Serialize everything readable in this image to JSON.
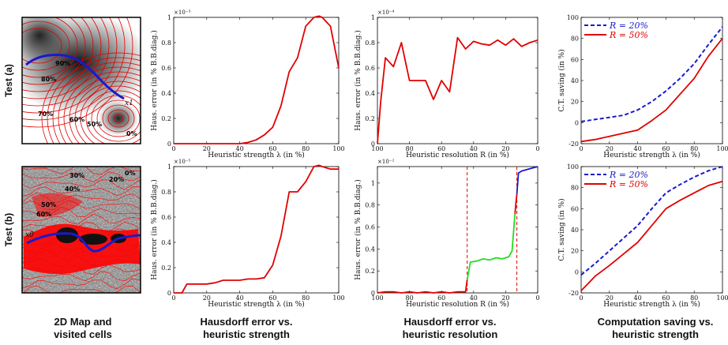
{
  "row_labels": [
    "Test (a)",
    "Test (b)"
  ],
  "captions": [
    [
      "2D Map and",
      "visited cells"
    ],
    [
      "Hausdorff error vs.",
      "heuristic strength"
    ],
    [
      "Hausdorff error vs.",
      "heuristic resolution"
    ],
    [
      "Computation saving vs.",
      "heuristic strength"
    ]
  ],
  "maps": [
    {
      "labels": [
        "90%",
        "80%",
        "70%",
        "60%",
        "50%",
        "0%"
      ],
      "point_label": "x1"
    },
    {
      "labels": [
        "30%",
        "40%",
        "50%",
        "60%",
        "20%",
        "0%"
      ],
      "point_label": "x0"
    }
  ],
  "chart_data": [
    {
      "type": "line",
      "panel": "a-hausdorff-vs-strength",
      "xlabel": "Heuristic strength  λ (in %)",
      "ylabel": "Haus. error (in % B.B.diag.)",
      "exponent": "×10⁻³",
      "xlim": [
        0,
        100
      ],
      "ylim": [
        0,
        1
      ],
      "xticks": [
        0,
        20,
        40,
        60,
        80,
        100
      ],
      "yticks": [
        0,
        0.2,
        0.4,
        0.6,
        0.8,
        1
      ],
      "ytick_labels": [
        "0",
        "0.2",
        "0.4",
        "0.6",
        "0.8",
        "1"
      ],
      "series": [
        {
          "color": "#e00000",
          "dash": false,
          "x": [
            0,
            10,
            20,
            30,
            40,
            45,
            50,
            55,
            60,
            65,
            70,
            75,
            80,
            85,
            88,
            90,
            95,
            100
          ],
          "y": [
            0,
            0,
            0,
            0,
            0,
            0.01,
            0.03,
            0.07,
            0.13,
            0.3,
            0.57,
            0.68,
            0.93,
            1.0,
            1.01,
            1.0,
            0.93,
            0.6
          ]
        }
      ]
    },
    {
      "type": "line",
      "panel": "a-hausdorff-vs-resolution",
      "xlabel": "Heuristic resolution  R (in %)",
      "ylabel": "Haus. error (in % B.B.diag.)",
      "exponent": "×10⁻⁴",
      "xlim": [
        100,
        0
      ],
      "ylim": [
        0,
        1
      ],
      "xticks": [
        100,
        80,
        60,
        40,
        20,
        0
      ],
      "yticks": [
        0,
        0.2,
        0.4,
        0.6,
        0.8,
        1
      ],
      "ytick_labels": [
        "0",
        "0.2",
        "0.4",
        "0.6",
        "0.8",
        "1"
      ],
      "series": [
        {
          "color": "#e00000",
          "dash": false,
          "x": [
            100,
            98,
            95,
            90,
            85,
            80,
            75,
            70,
            65,
            60,
            55,
            50,
            45,
            40,
            35,
            30,
            25,
            20,
            15,
            10,
            5,
            0
          ],
          "y": [
            0,
            0.33,
            0.68,
            0.61,
            0.8,
            0.5,
            0.5,
            0.5,
            0.35,
            0.5,
            0.41,
            0.84,
            0.75,
            0.81,
            0.79,
            0.78,
            0.82,
            0.78,
            0.83,
            0.77,
            0.8,
            0.82
          ]
        }
      ]
    },
    {
      "type": "line",
      "panel": "a-computation-saving",
      "xlabel": "Heuristic strength  λ (in %)",
      "ylabel": "C.T. saving (in %)",
      "exponent": "",
      "xlim": [
        0,
        100
      ],
      "ylim": [
        -20,
        100
      ],
      "xticks": [
        0,
        20,
        40,
        60,
        80,
        100
      ],
      "yticks": [
        -20,
        0,
        20,
        40,
        60,
        80,
        100
      ],
      "ytick_labels": [
        "-20",
        "0",
        "20",
        "40",
        "60",
        "80",
        "100"
      ],
      "legend": [
        "R = 20%",
        "R = 50%"
      ],
      "legend_position": "top-left",
      "series": [
        {
          "name": "R = 20%",
          "color": "#1a1acc",
          "dash": true,
          "x": [
            0,
            10,
            20,
            30,
            40,
            50,
            60,
            70,
            80,
            90,
            100
          ],
          "y": [
            1,
            3,
            5,
            7,
            12,
            20,
            30,
            42,
            56,
            74,
            91
          ]
        },
        {
          "name": "R = 50%",
          "color": "#e00000",
          "dash": false,
          "x": [
            0,
            10,
            20,
            30,
            40,
            50,
            60,
            70,
            80,
            90,
            100
          ],
          "y": [
            -18,
            -16,
            -13,
            -10,
            -7,
            2,
            12,
            27,
            42,
            63,
            80
          ]
        }
      ]
    },
    {
      "type": "line",
      "panel": "b-hausdorff-vs-strength",
      "xlabel": "Heuristic strength  λ (in %)",
      "ylabel": "Haus. error (in % B.B.diag.)",
      "exponent": "×10⁻⁵",
      "xlim": [
        0,
        100
      ],
      "ylim": [
        0,
        1
      ],
      "xticks": [
        0,
        20,
        40,
        60,
        80,
        100
      ],
      "yticks": [
        0,
        0.2,
        0.4,
        0.6,
        0.8,
        1
      ],
      "ytick_labels": [
        "0",
        "0.2",
        "0.4",
        "0.6",
        "0.8",
        "1"
      ],
      "series": [
        {
          "color": "#e00000",
          "dash": false,
          "x": [
            0,
            5,
            8,
            10,
            20,
            25,
            30,
            35,
            40,
            45,
            50,
            55,
            60,
            65,
            70,
            75,
            80,
            85,
            88,
            90,
            95,
            100
          ],
          "y": [
            0,
            0,
            0.07,
            0.07,
            0.07,
            0.08,
            0.1,
            0.1,
            0.1,
            0.11,
            0.11,
            0.12,
            0.22,
            0.45,
            0.8,
            0.8,
            0.88,
            1.0,
            1.01,
            1.0,
            0.98,
            0.98
          ]
        }
      ]
    },
    {
      "type": "line",
      "panel": "b-hausdorff-vs-resolution",
      "xlabel": "Heuristic resolution  R (in %)",
      "ylabel": "Haus. error (in % B.B.diag.)",
      "exponent": "×10⁻²",
      "xlim": [
        100,
        0
      ],
      "ylim": [
        0,
        1.15
      ],
      "xticks": [
        100,
        80,
        60,
        40,
        20,
        0
      ],
      "yticks": [
        0,
        0.2,
        0.4,
        0.6,
        0.8,
        1
      ],
      "ytick_labels": [
        "0",
        "0.2",
        "0.4",
        "0.6",
        "0.8",
        "1"
      ],
      "vlines": [
        44,
        13
      ],
      "series": [
        {
          "color": "#e00000",
          "dash": false,
          "x": [
            100,
            95,
            90,
            85,
            80,
            75,
            70,
            65,
            60,
            55,
            50,
            45,
            44
          ],
          "y": [
            0,
            0.01,
            0.01,
            0,
            0.01,
            0,
            0.01,
            0,
            0.01,
            0,
            0.01,
            0.01,
            0.12
          ]
        },
        {
          "color": "#22dd22",
          "dash": false,
          "x": [
            44,
            42,
            38,
            34,
            30,
            26,
            22,
            18,
            16,
            14.2
          ],
          "y": [
            0.12,
            0.28,
            0.29,
            0.31,
            0.3,
            0.32,
            0.31,
            0.33,
            0.38,
            0.72
          ]
        },
        {
          "color": "#e00000",
          "dash": false,
          "x": [
            14.2,
            13.6,
            13
          ],
          "y": [
            0.72,
            0.82,
            0.9
          ]
        },
        {
          "color": "#1a1acc",
          "dash": false,
          "x": [
            13,
            12,
            10,
            5,
            0
          ],
          "y": [
            0.9,
            1.09,
            1.11,
            1.13,
            1.15
          ]
        }
      ]
    },
    {
      "type": "line",
      "panel": "b-computation-saving",
      "xlabel": "Heuristic strength  λ (in %)",
      "ylabel": "C.T. saving (in %)",
      "exponent": "",
      "xlim": [
        0,
        100
      ],
      "ylim": [
        -20,
        100
      ],
      "xticks": [
        0,
        20,
        40,
        60,
        80,
        100
      ],
      "yticks": [
        -20,
        0,
        20,
        40,
        60,
        80,
        100
      ],
      "ytick_labels": [
        "-20",
        "0",
        "20",
        "40",
        "60",
        "80",
        "100"
      ],
      "legend": [
        "R = 20%",
        "R = 50%"
      ],
      "legend_position": "top-left",
      "series": [
        {
          "name": "R = 20%",
          "color": "#1a1acc",
          "dash": true,
          "x": [
            0,
            10,
            20,
            30,
            40,
            50,
            60,
            70,
            80,
            90,
            100
          ],
          "y": [
            -3,
            8,
            20,
            32,
            44,
            60,
            75,
            83,
            90,
            96,
            100
          ]
        },
        {
          "name": "R = 50%",
          "color": "#e00000",
          "dash": false,
          "x": [
            0,
            10,
            20,
            30,
            40,
            50,
            60,
            70,
            80,
            90,
            100
          ],
          "y": [
            -18,
            -4,
            6,
            17,
            28,
            44,
            60,
            68,
            75,
            82,
            86
          ]
        }
      ]
    }
  ]
}
